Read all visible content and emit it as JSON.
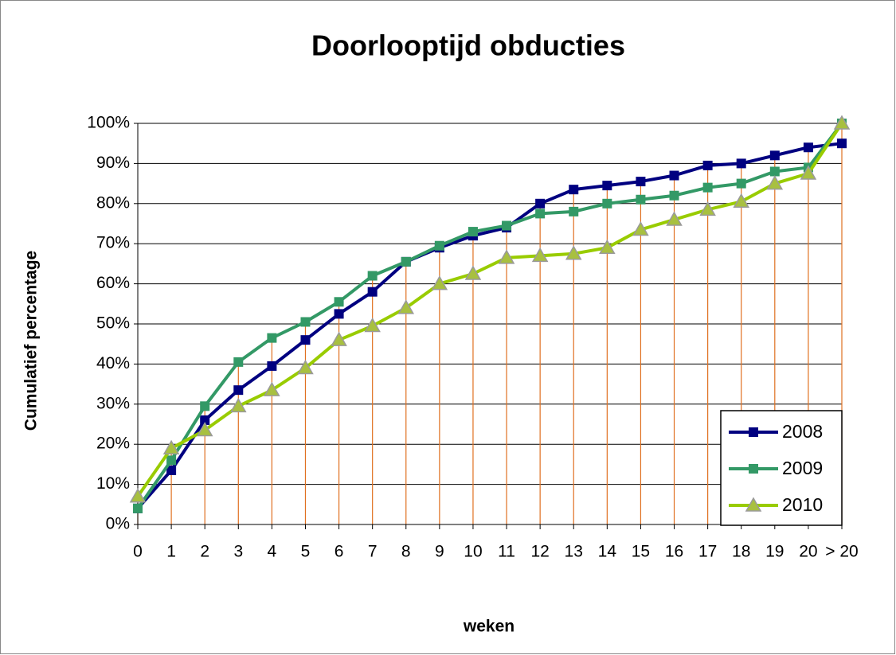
{
  "chart_data": {
    "type": "line",
    "title": "Doorlooptijd obducties",
    "x_label": "weken",
    "y_label": "Cumulatief percentage",
    "categories": [
      "0",
      "1",
      "2",
      "3",
      "4",
      "5",
      "6",
      "7",
      "8",
      "9",
      "10",
      "11",
      "12",
      "13",
      "14",
      "15",
      "16",
      "17",
      "18",
      "19",
      "20",
      "> 20"
    ],
    "series": [
      {
        "name": "2008",
        "color": "#000080",
        "marker": "square",
        "values": [
          4,
          13.5,
          26,
          33.5,
          39.5,
          46,
          52.5,
          58,
          65.5,
          69,
          72,
          74,
          80,
          83.5,
          84.5,
          85.5,
          87,
          89.5,
          90,
          92,
          94,
          95
        ]
      },
      {
        "name": "2009",
        "color": "#339966",
        "marker": "square",
        "values": [
          4,
          16,
          29.5,
          40.5,
          46.5,
          50.5,
          55.5,
          62,
          65.5,
          69.5,
          73,
          74.5,
          77.5,
          78,
          80,
          81,
          82,
          84,
          85,
          88,
          89,
          100
        ]
      },
      {
        "name": "2010",
        "color": "#99cc00",
        "marker": "triangle",
        "values": [
          7,
          19,
          23.5,
          29.5,
          33.5,
          39,
          46,
          49.5,
          54,
          60,
          62.5,
          66.5,
          67,
          67.5,
          69,
          73.5,
          76,
          78.5,
          80.5,
          85,
          87.5,
          100
        ]
      }
    ],
    "ylim": [
      0,
      100
    ],
    "yticks": [
      {
        "value": 0,
        "label": "0%"
      },
      {
        "value": 10,
        "label": "10%"
      },
      {
        "value": 20,
        "label": "20%"
      },
      {
        "value": 30,
        "label": "30%"
      },
      {
        "value": 40,
        "label": "40%"
      },
      {
        "value": 50,
        "label": "50%"
      },
      {
        "value": 60,
        "label": "60%"
      },
      {
        "value": 70,
        "label": "70%"
      },
      {
        "value": 80,
        "label": "80%"
      },
      {
        "value": 90,
        "label": "90%"
      },
      {
        "value": 100,
        "label": "100%"
      }
    ],
    "grid": true,
    "drop_lines": true,
    "drop_line_color": "#e07020",
    "legend": "lower right"
  }
}
